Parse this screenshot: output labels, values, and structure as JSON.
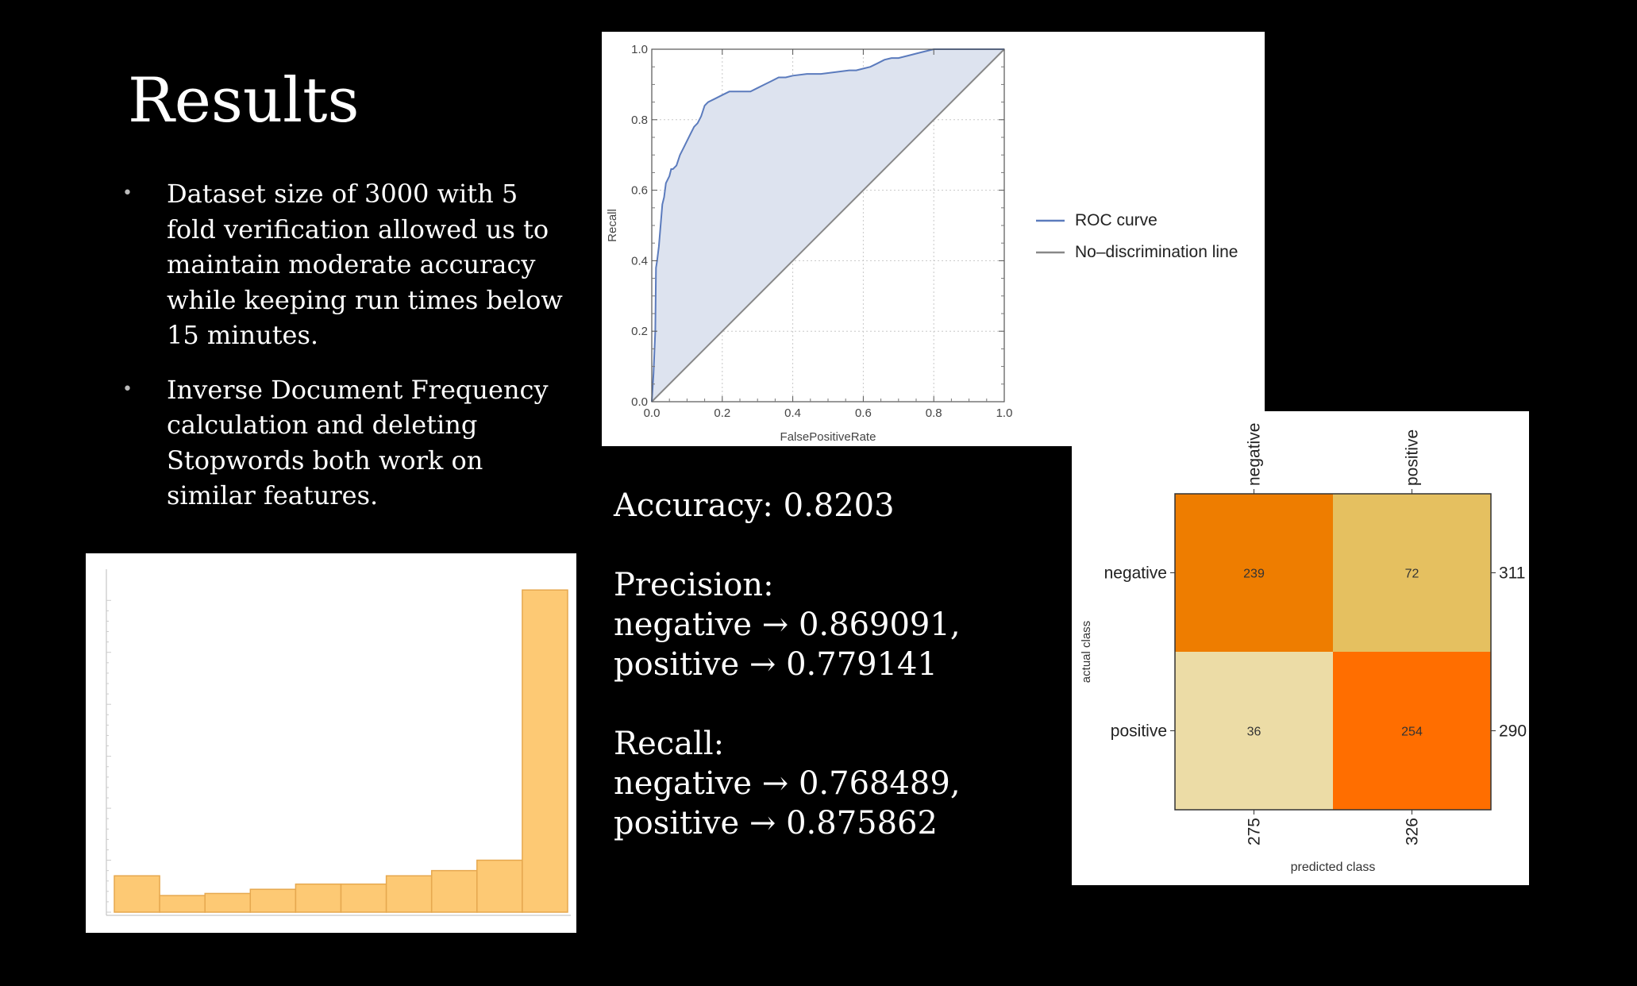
{
  "slide": {
    "title": "Results",
    "bullets": [
      "Dataset size of 3000 with 5 fold verification allowed us to maintain moderate accuracy while keeping run times below 15 minutes.",
      "Inverse Document Frequency calculation  and deleting Stopwords both work on similar features."
    ],
    "bullet_symbol": "•"
  },
  "metrics": {
    "accuracy": "Accuracy: 0.8203",
    "precision_label": "Precision:",
    "precision_negative": "negative → 0.869091,",
    "precision_positive": "positive → 0.779141",
    "recall_label": "Recall:",
    "recall_negative": "negative → 0.768489,",
    "recall_positive": "positive → 0.875862"
  },
  "chart_data": [
    {
      "type": "line",
      "xlabel": "FalsePositiveRate",
      "ylabel": "Recall",
      "xlim": [
        0,
        1
      ],
      "ylim": [
        0,
        1
      ],
      "xticks": [
        "0.0",
        "0.2",
        "0.4",
        "0.6",
        "0.8",
        "1.0"
      ],
      "yticks": [
        "0.0",
        "0.2",
        "0.4",
        "0.6",
        "0.8",
        "1.0"
      ],
      "grid": true,
      "legend_position": "right",
      "series": [
        {
          "name": "ROC curve",
          "color": "#5b7bbd",
          "fill": "#dde3ef",
          "x": [
            0,
            0.005,
            0.01,
            0.012,
            0.015,
            0.02,
            0.025,
            0.03,
            0.035,
            0.04,
            0.05,
            0.055,
            0.06,
            0.07,
            0.08,
            0.09,
            0.1,
            0.11,
            0.12,
            0.13,
            0.14,
            0.15,
            0.16,
            0.18,
            0.2,
            0.22,
            0.24,
            0.26,
            0.28,
            0.3,
            0.32,
            0.34,
            0.36,
            0.38,
            0.4,
            0.44,
            0.48,
            0.52,
            0.56,
            0.58,
            0.6,
            0.62,
            0.64,
            0.66,
            0.68,
            0.7,
            0.72,
            0.76,
            0.8,
            0.86,
            0.92,
            1.0
          ],
          "y": [
            0,
            0.08,
            0.2,
            0.38,
            0.4,
            0.44,
            0.5,
            0.56,
            0.58,
            0.62,
            0.64,
            0.66,
            0.66,
            0.67,
            0.7,
            0.72,
            0.74,
            0.76,
            0.78,
            0.79,
            0.81,
            0.84,
            0.85,
            0.86,
            0.87,
            0.88,
            0.88,
            0.88,
            0.88,
            0.89,
            0.9,
            0.91,
            0.92,
            0.92,
            0.925,
            0.93,
            0.93,
            0.935,
            0.94,
            0.94,
            0.945,
            0.95,
            0.96,
            0.97,
            0.975,
            0.975,
            0.98,
            0.99,
            1.0,
            1.0,
            1.0,
            1.0
          ]
        },
        {
          "name": "No–discrimination line",
          "color": "#888888",
          "x": [
            0,
            1
          ],
          "y": [
            0,
            1
          ]
        }
      ]
    },
    {
      "type": "heatmap",
      "xlabel": "predicted class",
      "ylabel": "actual class",
      "row_labels": [
        "negative",
        "positive"
      ],
      "col_labels": [
        "negative",
        "positive"
      ],
      "values": [
        [
          239,
          72
        ],
        [
          36,
          254
        ]
      ],
      "cell_colors": [
        [
          "#ee7d00",
          "#e5c060"
        ],
        [
          "#ecdca6",
          "#ff6e00"
        ]
      ],
      "row_totals": [
        "311",
        "290"
      ],
      "col_totals": [
        "275",
        "326"
      ]
    },
    {
      "type": "bar",
      "bin_edges": [
        0,
        0.1,
        0.2,
        0.3,
        0.4,
        0.5,
        0.6,
        0.7,
        0.8,
        0.9,
        1.0
      ],
      "values": [
        35,
        16,
        18,
        22,
        27,
        27,
        35,
        40,
        50,
        310
      ],
      "ylim": [
        0,
        330
      ],
      "color": "#fdc974",
      "stroke": "#e6a84f"
    }
  ]
}
